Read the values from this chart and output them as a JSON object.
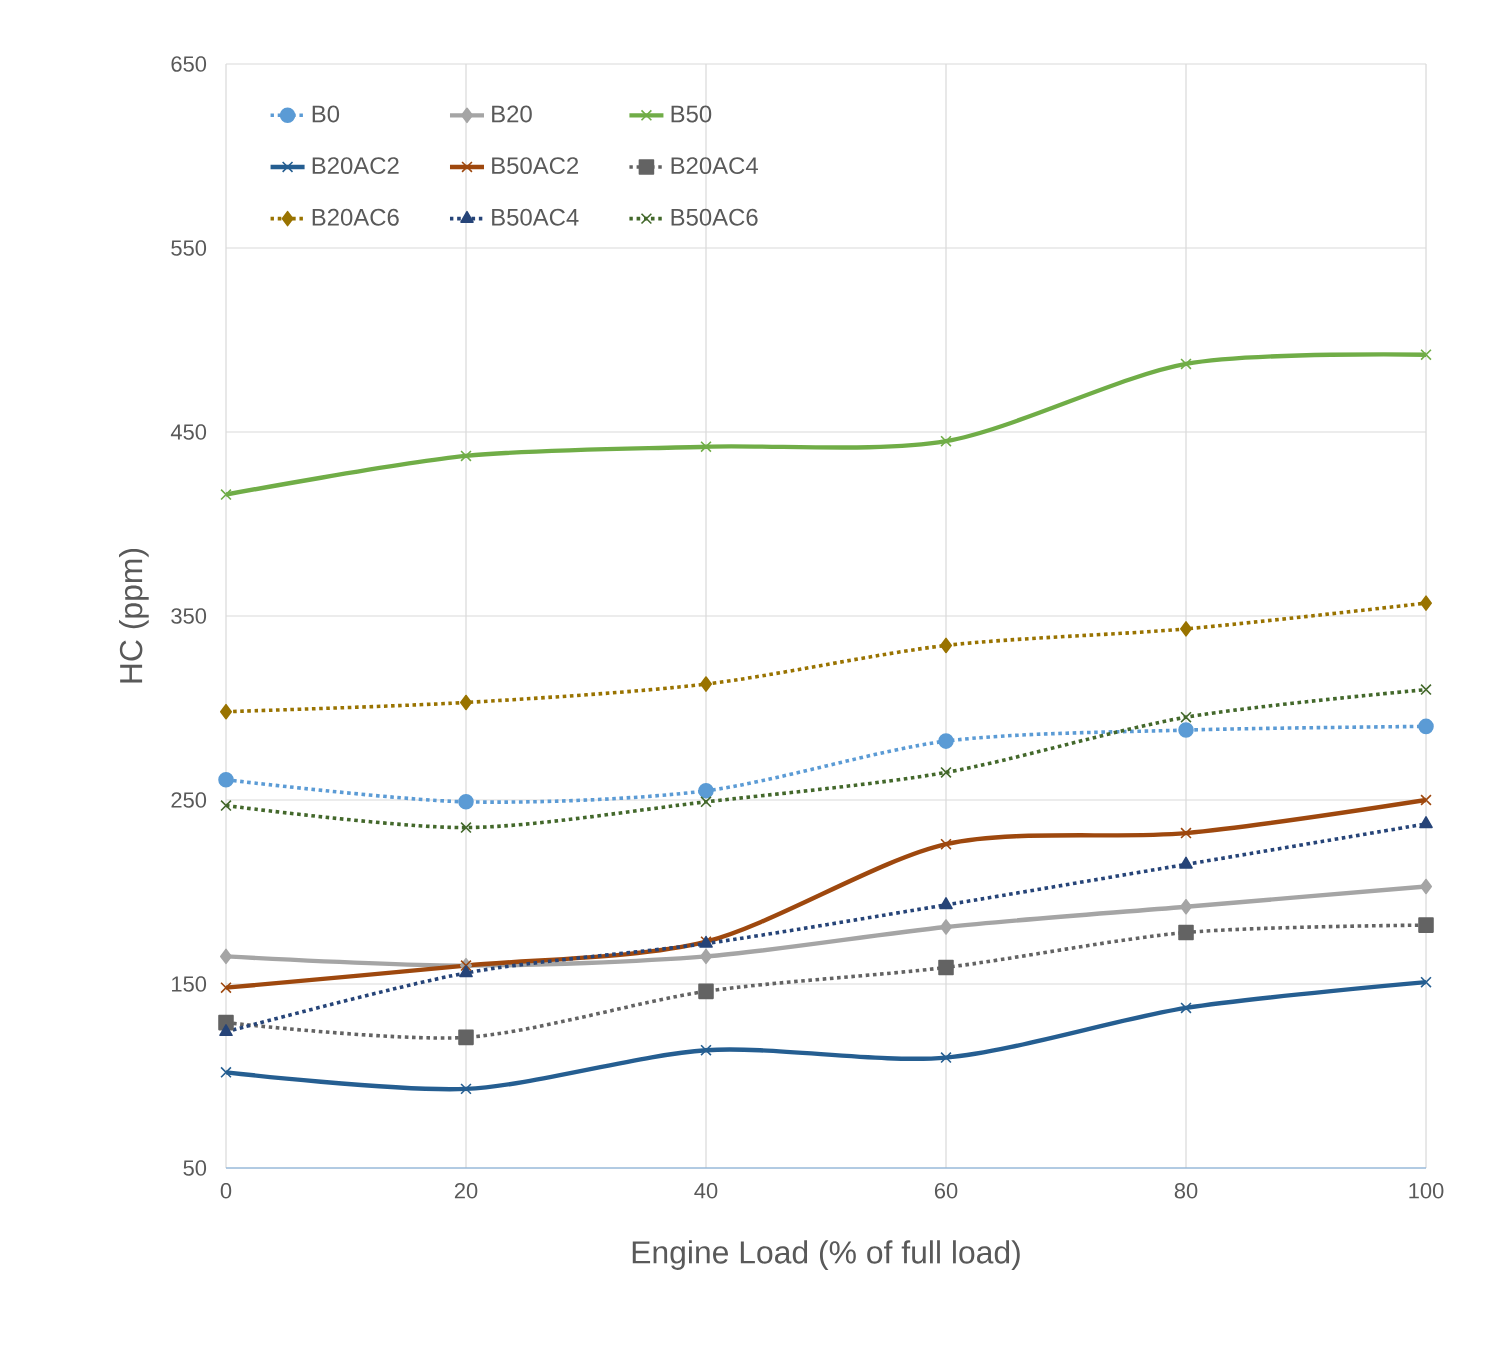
{
  "chart_data": {
    "type": "line",
    "xlabel": "Engine Load (% of full load)",
    "ylabel": "HC (ppm)",
    "x": [
      0,
      20,
      40,
      60,
      80,
      100
    ],
    "xlim": [
      0,
      100
    ],
    "xticks": [
      0,
      20,
      40,
      60,
      80,
      100
    ],
    "ylim": [
      50,
      650
    ],
    "yticks": [
      50,
      150,
      250,
      350,
      450,
      550,
      650
    ],
    "grid": true,
    "legend": "top left",
    "series": [
      {
        "name": "B0",
        "color": "#5b9bd5",
        "marker": "circle",
        "line_style": "dotted",
        "values": [
          261,
          249,
          255,
          282,
          288,
          290
        ]
      },
      {
        "name": "B20",
        "color": "#a5a5a5",
        "marker": "diamond",
        "line_style": "solid",
        "values": [
          165,
          160,
          165,
          181,
          192,
          203
        ]
      },
      {
        "name": "B50",
        "color": "#70ad47",
        "marker": "cross",
        "line_style": "solid",
        "values": [
          416,
          437,
          442,
          445,
          487,
          492
        ]
      },
      {
        "name": "B20AC2",
        "color": "#255e91",
        "marker": "cross",
        "line_style": "solid",
        "values": [
          102,
          93,
          114,
          110,
          137,
          151
        ]
      },
      {
        "name": "B50AC2",
        "color": "#9e480e",
        "marker": "cross",
        "line_style": "solid",
        "values": [
          148,
          160,
          173,
          226,
          232,
          250
        ]
      },
      {
        "name": "B20AC4",
        "color": "#636363",
        "marker": "square",
        "line_style": "dotted",
        "values": [
          129,
          121,
          146,
          159,
          178,
          182
        ]
      },
      {
        "name": "B20AC6",
        "color": "#997300",
        "marker": "diamond",
        "line_style": "dotted",
        "values": [
          298,
          303,
          313,
          334,
          343,
          357
        ]
      },
      {
        "name": "B50AC4",
        "color": "#264478",
        "marker": "triangle",
        "line_style": "dotted",
        "values": [
          124,
          156,
          172,
          193,
          215,
          237
        ]
      },
      {
        "name": "B50AC6",
        "color": "#43682b",
        "marker": "cross",
        "line_style": "dotted",
        "values": [
          247,
          235,
          249,
          265,
          295,
          310
        ]
      }
    ]
  }
}
